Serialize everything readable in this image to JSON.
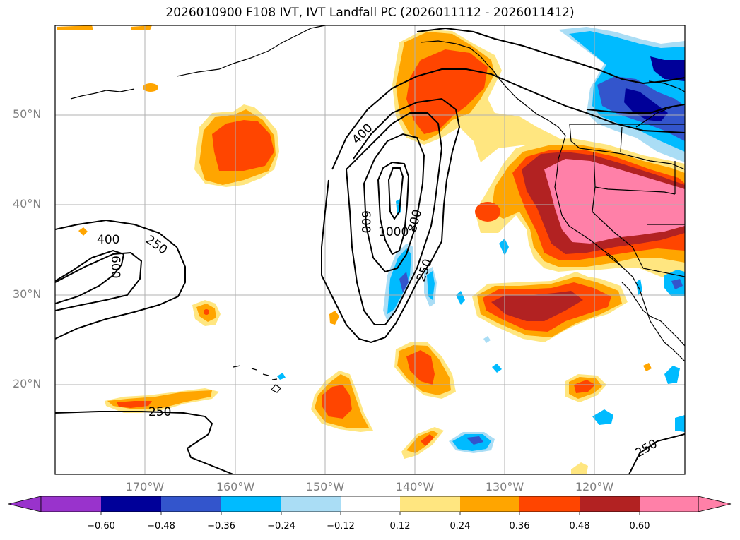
{
  "title": "2026010900 F108 IVT, IVT Landfall PC (2026011112 - 2026011412)",
  "lat_ticks": [
    "50°N",
    "40°N",
    "30°N",
    "20°N"
  ],
  "lon_ticks": [
    "170°W",
    "160°W",
    "150°W",
    "140°W",
    "130°W",
    "120°W"
  ],
  "contour_labels": [
    "400",
    "250",
    "600",
    "250",
    "400",
    "600",
    "1000",
    "800",
    "250",
    "250"
  ],
  "colorbar": {
    "ticks": [
      "−0.60",
      "−0.48",
      "−0.36",
      "−0.24",
      "−0.12",
      "0.12",
      "0.24",
      "0.36",
      "0.48",
      "0.60"
    ],
    "colors": [
      "#9933cc",
      "#000099",
      "#3355cc",
      "#00bbff",
      "#aaddf5",
      "#ffffff",
      "#ffe680",
      "#ffa500",
      "#ff4500",
      "#b22222",
      "#ff80a8"
    ]
  },
  "map_info": {
    "projection": "cylindrical",
    "lon_range": [
      -180,
      -110
    ],
    "lat_range": [
      10,
      60
    ],
    "contour_levels": [
      250,
      400,
      600,
      800,
      1000
    ],
    "colors": {
      "c012": "#ffe680",
      "c024": "#ffa500",
      "c036": "#ff4500",
      "c048": "#b22222",
      "c060": "#ff80a8",
      "n012": "#aaddf5",
      "n024": "#00bbff",
      "n036": "#3355cc",
      "n048": "#000099"
    }
  }
}
